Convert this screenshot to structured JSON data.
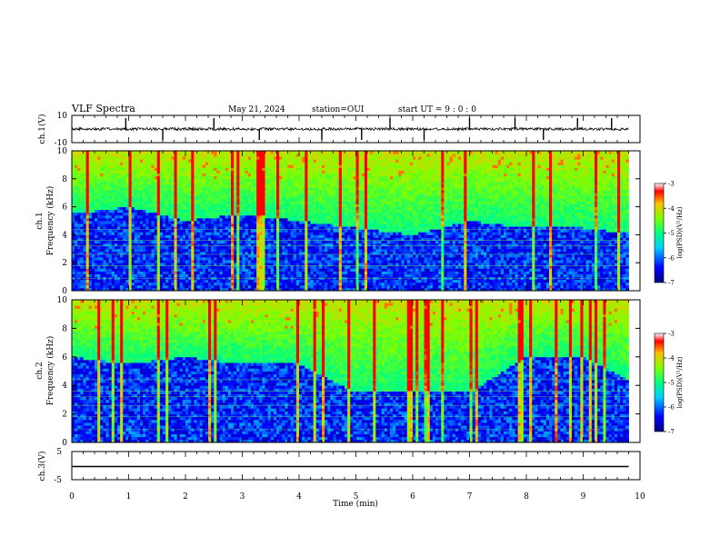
{
  "header": {
    "title": "VLF Spectra",
    "date": "May 21, 2024",
    "station": "station=OUI",
    "start": "start UT =  9 : 0 : 0"
  },
  "chart_data": [
    {
      "type": "line",
      "panel": "ch1-waveform",
      "ylabel": "ch.1(V)",
      "ylim": [
        -10,
        10
      ],
      "y_ticks": [
        "10",
        "-10"
      ],
      "baseline": 0,
      "noise_amplitude": 1,
      "spikes_min": [
        0.95,
        1.6,
        2.5,
        3.3,
        4.4,
        5.1,
        5.6,
        6.2,
        7.0,
        7.8,
        8.3,
        8.9,
        9.5
      ],
      "xlim": [
        0,
        10
      ]
    },
    {
      "type": "heatmap",
      "panel": "ch1-spectrogram",
      "ylabel": [
        "ch.1",
        "Frequency (kHz)"
      ],
      "ylim": [
        0,
        10
      ],
      "y_ticks": [
        "0",
        "2",
        "4",
        "6",
        "8",
        "10"
      ],
      "xlim": [
        0,
        10
      ],
      "data_end_min": 9.8,
      "lower_band_top_khz": [
        5.5,
        6.0,
        5.0,
        5.5,
        5.0,
        4.5,
        4.0,
        5.0,
        4.5,
        4.5,
        4.0
      ],
      "colorbar": {
        "label": "log(PSD)(V²/Hz)",
        "ticks": [
          "-3",
          "-4",
          "-5",
          "-6",
          "-7"
        ],
        "range": [
          -7,
          -3
        ]
      }
    },
    {
      "type": "heatmap",
      "panel": "ch2-spectrogram",
      "ylabel": [
        "ch.2",
        "Frequency (kHz)"
      ],
      "ylim": [
        0,
        10
      ],
      "y_ticks": [
        "0",
        "2",
        "4",
        "6",
        "8",
        "10"
      ],
      "xlim": [
        0,
        10
      ],
      "data_end_min": 9.8,
      "lower_band_top_khz": [
        6.0,
        5.5,
        6.0,
        5.5,
        5.5,
        3.5,
        3.5,
        3.5,
        6.0,
        6.0,
        4.0
      ],
      "colorbar": {
        "label": "log(PSD)(V²/Hz)",
        "ticks": [
          "-3",
          "-4",
          "-5",
          "-6",
          "-7"
        ],
        "range": [
          -7,
          -3
        ]
      }
    },
    {
      "type": "line",
      "panel": "ch3-waveform",
      "ylabel": "ch.3(V)",
      "ylim": [
        -5,
        5
      ],
      "y_ticks": [
        "5",
        "-5"
      ],
      "value": 0,
      "xlim": [
        0,
        10
      ],
      "xlabel": "Time (min)",
      "x_ticks": [
        "0",
        "1",
        "2",
        "3",
        "4",
        "5",
        "6",
        "7",
        "8",
        "9",
        "10"
      ]
    }
  ]
}
